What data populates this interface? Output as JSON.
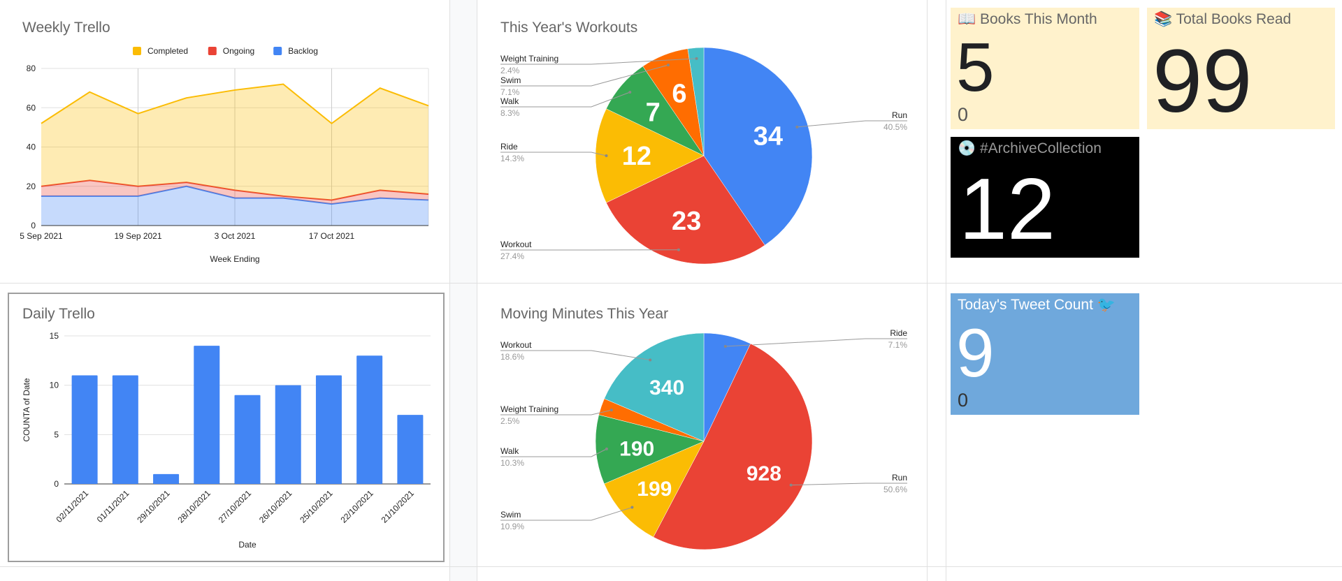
{
  "weekly": {
    "title": "Weekly Trello",
    "chart_data": {
      "type": "area",
      "stacked": true,
      "title": "Weekly Trello",
      "xlabel": "Week Ending",
      "ylabel": "",
      "x": [
        "2021-09-05",
        "2021-09-12",
        "2021-09-19",
        "2021-09-26",
        "2021-10-03",
        "2021-10-10",
        "2021-10-17",
        "2021-10-24",
        "2021-10-31"
      ],
      "x_tick_labels": [
        "5 Sep 2021",
        "19 Sep 2021",
        "3 Oct 2021",
        "17 Oct 2021"
      ],
      "y_ticks": [
        "0",
        "20",
        "40",
        "60",
        "80"
      ],
      "ylim": [
        0,
        80
      ],
      "legend": "top",
      "grid": true,
      "series": [
        {
          "name": "Backlog",
          "color": "#4285f4",
          "values": [
            15,
            15,
            15,
            20,
            14,
            14,
            11,
            14,
            13
          ]
        },
        {
          "name": "Ongoing",
          "color": "#ea4335",
          "values": [
            5,
            8,
            5,
            2,
            4,
            1,
            2,
            4,
            3
          ]
        },
        {
          "name": "Completed",
          "color": "#fbbc04",
          "values": [
            32,
            45,
            37,
            43,
            51,
            57,
            39,
            52,
            45
          ]
        }
      ],
      "legend_order": [
        "Completed",
        "Ongoing",
        "Backlog"
      ]
    }
  },
  "daily": {
    "title": "Daily Trello",
    "chart_data": {
      "type": "bar",
      "title": "Daily Trello",
      "xlabel": "Date",
      "ylabel": "COUNTA of Date",
      "categories": [
        "02/11/2021",
        "01/11/2021",
        "29/10/2021",
        "28/10/2021",
        "27/10/2021",
        "26/10/2021",
        "25/10/2021",
        "22/10/2021",
        "21/10/2021"
      ],
      "values": [
        11,
        11,
        1,
        14,
        9,
        10,
        11,
        13,
        7
      ],
      "y_ticks": [
        "0",
        "5",
        "10",
        "15"
      ],
      "ylim": [
        0,
        15
      ],
      "grid": true,
      "color": "#4285f4"
    }
  },
  "workouts": {
    "title": "This Year's Workouts",
    "chart_data": {
      "type": "pie",
      "title": "This Year's Workouts",
      "slices": [
        {
          "label": "Run",
          "value": 34,
          "pct": "40.5%",
          "color": "#4285f4",
          "side": "right",
          "show_value": true
        },
        {
          "label": "Workout",
          "value": 23,
          "pct": "27.4%",
          "color": "#ea4335",
          "side": "left",
          "show_value": true
        },
        {
          "label": "Ride",
          "value": 12,
          "pct": "14.3%",
          "color": "#fbbc04",
          "side": "left",
          "show_value": true
        },
        {
          "label": "Walk",
          "value": 7,
          "pct": "8.3%",
          "color": "#34a853",
          "side": "left",
          "show_value": true
        },
        {
          "label": "Swim",
          "value": 6,
          "pct": "7.1%",
          "color": "#ff6d01",
          "side": "left",
          "show_value": true
        },
        {
          "label": "Weight Training",
          "value": 2,
          "pct": "2.4%",
          "color": "#46bdc6",
          "side": "left",
          "show_value": false
        }
      ]
    }
  },
  "minutes": {
    "title": "Moving Minutes This Year",
    "chart_data": {
      "type": "pie",
      "title": "Moving Minutes This Year",
      "slices": [
        {
          "label": "Ride",
          "value": 130,
          "pct": "7.1%",
          "color": "#4285f4",
          "side": "right",
          "show_value": false
        },
        {
          "label": "Run",
          "value": 928,
          "pct": "50.6%",
          "color": "#ea4335",
          "side": "right",
          "show_value": true
        },
        {
          "label": "Swim",
          "value": 199,
          "pct": "10.9%",
          "color": "#fbbc04",
          "side": "left",
          "show_value": true
        },
        {
          "label": "Walk",
          "value": 190,
          "pct": "10.3%",
          "color": "#34a853",
          "side": "left",
          "show_value": true
        },
        {
          "label": "Weight Training",
          "value": 46,
          "pct": "2.5%",
          "color": "#ff6d01",
          "side": "left",
          "show_value": false
        },
        {
          "label": "Workout",
          "value": 340,
          "pct": "18.6%",
          "color": "#46bdc6",
          "side": "left",
          "show_value": true
        }
      ]
    }
  },
  "tiles": {
    "books_month": {
      "icon": "open-book-icon",
      "glyph": "📖",
      "title": "Books This Month",
      "value": "5",
      "sub": "0",
      "bg": "#fff2cc"
    },
    "books_total": {
      "icon": "books-icon",
      "glyph": "📚",
      "title": "Total Books Read",
      "value": "99",
      "bg": "#fff2cc"
    },
    "archive": {
      "icon": "cd-icon",
      "glyph": "💿",
      "title": "#ArchiveCollection",
      "value": "12",
      "bg": "#000000"
    },
    "tweets": {
      "icon": "bird-icon",
      "glyph": "🐦",
      "title": "Today's Tweet Count",
      "value": "9",
      "sub": "0",
      "bg": "#6fa8dc"
    }
  }
}
